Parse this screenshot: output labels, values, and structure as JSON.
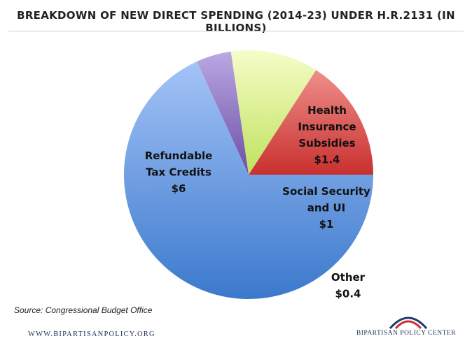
{
  "chart_data": {
    "type": "pie",
    "title": "BREAKDOWN OF NEW DIRECT SPENDING (2014-23) UNDER H.R.2131 (IN BILLIONS)",
    "unit": "billions",
    "slices": [
      {
        "label_lines": [
          "Health",
          "Insurance",
          "Subsidies"
        ],
        "value_label": "$1.4",
        "value": 1.4,
        "color_light": "#ee8f8b",
        "color_dark": "#c8302e"
      },
      {
        "label_lines": [
          "Social Security",
          "and UI"
        ],
        "value_label": "$1",
        "value": 1.0,
        "color_light": "#f6fcc8",
        "color_dark": "#bfe25e"
      },
      {
        "label_lines": [
          "Other"
        ],
        "value_label": "$0.4",
        "value": 0.4,
        "color_light": "#bba8e3",
        "color_dark": "#6c4ea6"
      },
      {
        "label_lines": [
          "Refundable",
          "Tax Credits"
        ],
        "value_label": "$6",
        "value": 6.0,
        "color_light": "#a4c3f7",
        "color_dark": "#3b79cc"
      }
    ],
    "start_angle_deg": 0,
    "direction": "counterclockwise",
    "legend": "none"
  },
  "source": "Source: Congressional Budget Office",
  "footer": {
    "website": "WWW.BIPARTISANPOLICY.ORG",
    "org_name": "BIPARTISAN POLICY CENTER",
    "logo_colors": [
      "#1f3a6e",
      "#c8302e"
    ]
  }
}
